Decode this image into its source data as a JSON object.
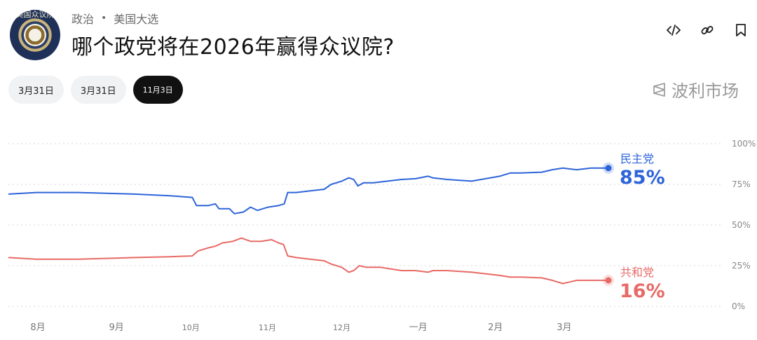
{
  "header": {
    "avatar_text": "美国众议院",
    "breadcrumb": [
      "政治",
      "美国大选"
    ],
    "breadcrumb_sep": "•",
    "title": "哪个政党将在2026年赢得众议院?"
  },
  "toolbar": {
    "icons": [
      "code-icon",
      "link-icon",
      "bookmark-icon"
    ]
  },
  "tabs": [
    {
      "label": "3月31日",
      "active": false
    },
    {
      "label": "3月31日",
      "active": false
    },
    {
      "label": "11月3日",
      "active": true
    }
  ],
  "brand": {
    "name": "波利市场",
    "icon": "polymarket-logo-icon"
  },
  "colors": {
    "dem": "#2e64d9",
    "rep": "#e86a66",
    "grid": "#d6d6d6",
    "axis_text": "#888888"
  },
  "chart_data": {
    "type": "line",
    "title": "",
    "xlabel": "",
    "ylabel": "",
    "ylim": [
      0,
      100
    ],
    "y_ticks": [
      "0%",
      "25%",
      "50%",
      "75%",
      "100%"
    ],
    "x_ticks": [
      {
        "label": "8月",
        "t": 40
      },
      {
        "label": "9月",
        "t": 152
      },
      {
        "label": "10月",
        "t": 258
      },
      {
        "label": "11月",
        "t": 367
      },
      {
        "label": "12月",
        "t": 473
      },
      {
        "label": "一月",
        "t": 582
      },
      {
        "label": "2月",
        "t": 692
      },
      {
        "label": "3月",
        "t": 790
      }
    ],
    "x_range": [
      0,
      855
    ],
    "grid": true,
    "legend": "end-labels",
    "series": [
      {
        "name": "民主党",
        "value_label": "85%",
        "color": "#2e64d9",
        "points": [
          [
            0,
            69
          ],
          [
            40,
            70
          ],
          [
            100,
            70
          ],
          [
            140,
            69.5
          ],
          [
            180,
            69
          ],
          [
            230,
            68
          ],
          [
            262,
            67
          ],
          [
            268,
            62
          ],
          [
            285,
            62
          ],
          [
            295,
            63
          ],
          [
            300,
            60
          ],
          [
            315,
            60
          ],
          [
            322,
            57
          ],
          [
            335,
            58
          ],
          [
            345,
            61
          ],
          [
            355,
            59
          ],
          [
            370,
            61
          ],
          [
            385,
            62
          ],
          [
            393,
            63
          ],
          [
            398,
            70
          ],
          [
            410,
            70
          ],
          [
            430,
            71
          ],
          [
            450,
            72
          ],
          [
            460,
            75
          ],
          [
            475,
            77
          ],
          [
            485,
            79
          ],
          [
            492,
            78
          ],
          [
            498,
            74
          ],
          [
            506,
            76
          ],
          [
            520,
            76
          ],
          [
            540,
            77
          ],
          [
            560,
            78
          ],
          [
            580,
            78.5
          ],
          [
            598,
            80
          ],
          [
            605,
            79
          ],
          [
            625,
            78
          ],
          [
            660,
            77
          ],
          [
            700,
            80
          ],
          [
            715,
            82
          ],
          [
            730,
            82
          ],
          [
            760,
            82.5
          ],
          [
            775,
            84
          ],
          [
            790,
            85
          ],
          [
            800,
            84.5
          ],
          [
            810,
            84
          ],
          [
            830,
            85
          ],
          [
            855,
            85
          ]
        ]
      },
      {
        "name": "共和党",
        "value_label": "16%",
        "color": "#e86a66",
        "points": [
          [
            0,
            30
          ],
          [
            40,
            29
          ],
          [
            100,
            29
          ],
          [
            140,
            29.5
          ],
          [
            180,
            30
          ],
          [
            230,
            30.5
          ],
          [
            262,
            31
          ],
          [
            270,
            34
          ],
          [
            285,
            36
          ],
          [
            295,
            37
          ],
          [
            305,
            39
          ],
          [
            320,
            40
          ],
          [
            332,
            42
          ],
          [
            345,
            40
          ],
          [
            360,
            40
          ],
          [
            375,
            41
          ],
          [
            385,
            39
          ],
          [
            392,
            38
          ],
          [
            398,
            31
          ],
          [
            410,
            30
          ],
          [
            430,
            29
          ],
          [
            450,
            28
          ],
          [
            460,
            26
          ],
          [
            475,
            24
          ],
          [
            485,
            21
          ],
          [
            492,
            22
          ],
          [
            500,
            25
          ],
          [
            510,
            24
          ],
          [
            530,
            24
          ],
          [
            560,
            22
          ],
          [
            580,
            22
          ],
          [
            598,
            21
          ],
          [
            605,
            22
          ],
          [
            625,
            22
          ],
          [
            660,
            21
          ],
          [
            700,
            19
          ],
          [
            715,
            18
          ],
          [
            730,
            18
          ],
          [
            760,
            17.5
          ],
          [
            775,
            16
          ],
          [
            790,
            14
          ],
          [
            800,
            15
          ],
          [
            810,
            16
          ],
          [
            830,
            16
          ],
          [
            855,
            16
          ]
        ]
      }
    ]
  }
}
